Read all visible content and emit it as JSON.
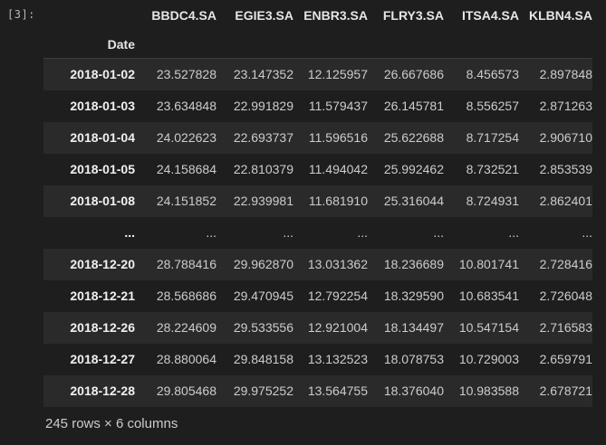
{
  "cell_prompt": "[3]:",
  "dataframe": {
    "columns": [
      "BBDC4.SA",
      "EGIE3.SA",
      "ENBR3.SA",
      "FLRY3.SA",
      "ITSA4.SA",
      "KLBN4.SA"
    ],
    "index_name": "Date",
    "rows": [
      {
        "index": "2018-01-02",
        "values": [
          "23.527828",
          "23.147352",
          "12.125957",
          "26.667686",
          "8.456573",
          "2.897848"
        ]
      },
      {
        "index": "2018-01-03",
        "values": [
          "23.634848",
          "22.991829",
          "11.579437",
          "26.145781",
          "8.556257",
          "2.871263"
        ]
      },
      {
        "index": "2018-01-04",
        "values": [
          "24.022623",
          "22.693737",
          "11.596516",
          "25.622688",
          "8.717254",
          "2.906710"
        ]
      },
      {
        "index": "2018-01-05",
        "values": [
          "24.158684",
          "22.810379",
          "11.494042",
          "25.992462",
          "8.732521",
          "2.853539"
        ]
      },
      {
        "index": "2018-01-08",
        "values": [
          "24.151852",
          "22.939981",
          "11.681910",
          "25.316044",
          "8.724931",
          "2.862401"
        ]
      },
      {
        "index": "...",
        "values": [
          "...",
          "...",
          "...",
          "...",
          "...",
          "..."
        ]
      },
      {
        "index": "2018-12-20",
        "values": [
          "28.788416",
          "29.962870",
          "13.031362",
          "18.236689",
          "10.801741",
          "2.728416"
        ]
      },
      {
        "index": "2018-12-21",
        "values": [
          "28.568686",
          "29.470945",
          "12.792254",
          "18.329590",
          "10.683541",
          "2.726048"
        ]
      },
      {
        "index": "2018-12-26",
        "values": [
          "28.224609",
          "29.533556",
          "12.921004",
          "18.134497",
          "10.547154",
          "2.716583"
        ]
      },
      {
        "index": "2018-12-27",
        "values": [
          "28.880064",
          "29.848158",
          "13.132523",
          "18.078753",
          "10.729003",
          "2.659791"
        ]
      },
      {
        "index": "2018-12-28",
        "values": [
          "29.805468",
          "29.975252",
          "13.564755",
          "18.376040",
          "10.983588",
          "2.678721"
        ]
      }
    ],
    "shape_text": "245 rows × 6 columns"
  }
}
